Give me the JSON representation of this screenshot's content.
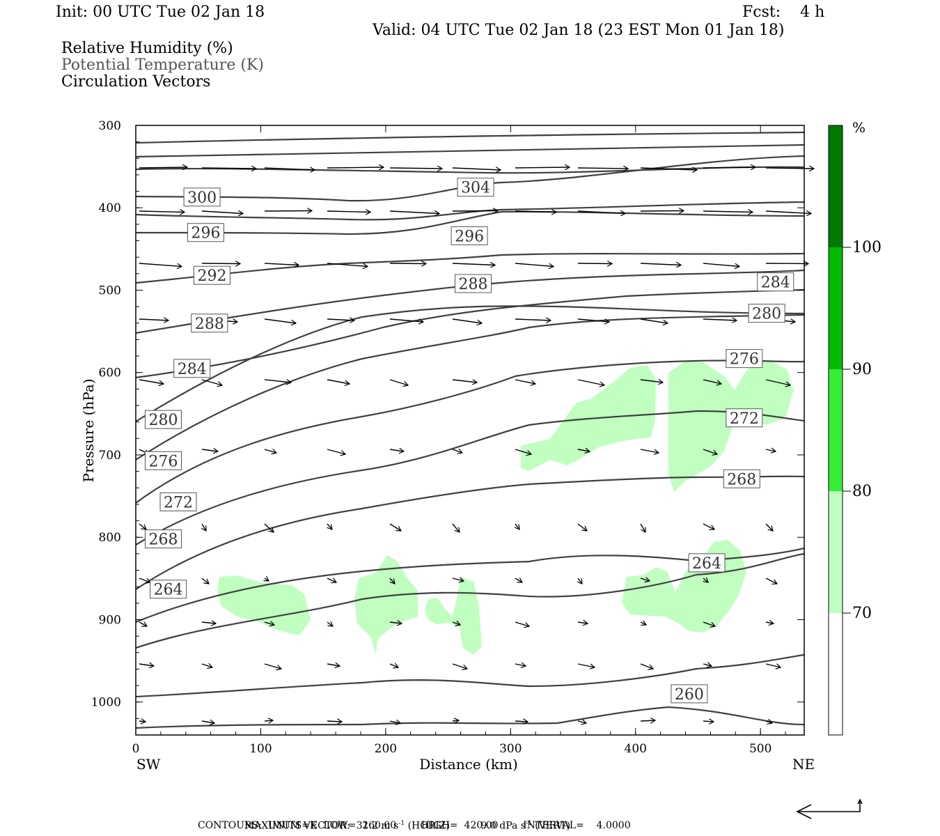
{
  "header": {
    "init": "Init: 00 UTC Tue 02 Jan 18",
    "fcst": "Fcst:    4 h",
    "valid": "Valid: 04 UTC Tue 02 Jan 18 (23 EST Mon 01 Jan 18)",
    "fields": [
      "Relative Humidity (%)",
      "Potential Temperature (K)",
      "Circulation Vectors"
    ]
  },
  "footer": {
    "max_vector_label": "MAXIMUM VECTOR:",
    "max_horiz": "31.2 m s",
    "horiz_unit": "(HORIZ)",
    "max_vert": "9.0 dPa s",
    "vert_unit": "(VERT)",
    "exponent": "-1",
    "contours": "CONTOURS:  UNITS=K  LOW=  260.00        HIGH=  420.00        INTERVAL=    4.0000"
  },
  "colors": {
    "rh70": "#c0ffc0",
    "rh80": "#33ee33",
    "rh90": "#00bb00",
    "rh100": "#007a00",
    "contour": "#404040",
    "label_text": "#333333"
  },
  "chart_data": {
    "type": "cross-section",
    "xlabel": "Distance (km)",
    "ylabel": "Pressure (hPa)",
    "x_ticks": [
      "0",
      "100",
      "200",
      "300",
      "400",
      "500"
    ],
    "x_end_labels": {
      "left": "SW",
      "right": "NE"
    },
    "y_ticks": [
      "300",
      "400",
      "500",
      "600",
      "700",
      "800",
      "900",
      "1000"
    ],
    "xlim": [
      0,
      535
    ],
    "ylim": [
      300,
      1040
    ],
    "colorbar": {
      "unit": "%",
      "levels": [
        "100",
        "90",
        "80",
        "70"
      ]
    },
    "theta_labels": [
      {
        "text": "300",
        "x": 53,
        "p": 387
      },
      {
        "text": "296",
        "x": 56,
        "p": 430
      },
      {
        "text": "292",
        "x": 61,
        "p": 482
      },
      {
        "text": "288",
        "x": 59,
        "p": 540
      },
      {
        "text": "284",
        "x": 45,
        "p": 595
      },
      {
        "text": "280",
        "x": 22,
        "p": 657
      },
      {
        "text": "276",
        "x": 22,
        "p": 707
      },
      {
        "text": "272",
        "x": 34,
        "p": 757
      },
      {
        "text": "268",
        "x": 22,
        "p": 802
      },
      {
        "text": "264",
        "x": 26,
        "p": 863
      },
      {
        "text": "304",
        "x": 272,
        "p": 375
      },
      {
        "text": "296",
        "x": 267,
        "p": 434
      },
      {
        "text": "288",
        "x": 270,
        "p": 492
      },
      {
        "text": "284",
        "x": 512,
        "p": 490
      },
      {
        "text": "280",
        "x": 505,
        "p": 528
      },
      {
        "text": "276",
        "x": 487,
        "p": 583
      },
      {
        "text": "272",
        "x": 487,
        "p": 655
      },
      {
        "text": "268",
        "x": 485,
        "p": 729
      },
      {
        "text": "264",
        "x": 457,
        "p": 831
      },
      {
        "text": "260",
        "x": 443,
        "p": 990
      }
    ]
  }
}
